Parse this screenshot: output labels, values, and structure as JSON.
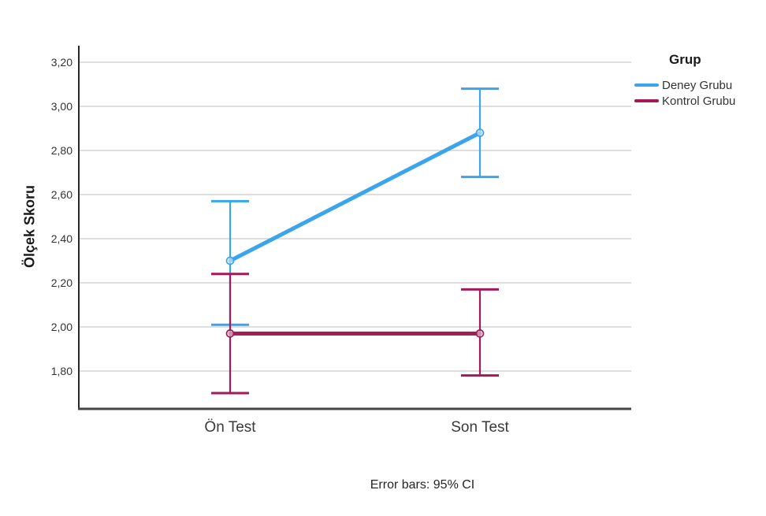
{
  "figure": {
    "caption": "Error bars: 95% CI"
  },
  "legend": {
    "title": "Grup",
    "position": "right",
    "items": [
      {
        "label": "Deney Grubu",
        "color": "#3AA5EC"
      },
      {
        "label": "Kontrol Grubu",
        "color": "#A21A58"
      }
    ]
  },
  "chart_data": {
    "type": "line",
    "title": "",
    "xlabel": "",
    "ylabel": "Ölçek Skoru",
    "categories": [
      "Ön Test",
      "Son Test"
    ],
    "yticks": [
      {
        "label": "3,20",
        "value": 3.2
      },
      {
        "label": "3,00",
        "value": 3.0
      },
      {
        "label": "2,80",
        "value": 2.8
      },
      {
        "label": "2,60",
        "value": 2.6
      },
      {
        "label": "2,40",
        "value": 2.4
      },
      {
        "label": "2,20",
        "value": 2.2
      },
      {
        "label": "2,00",
        "value": 2.0
      },
      {
        "label": "1,80",
        "value": 1.8
      }
    ],
    "ylim": [
      1.63,
      3.28
    ],
    "grid": true,
    "grid_color": "#C9C9C9",
    "axis_color": "#333333",
    "legend_position": "right",
    "error_bars": "95% CI",
    "series": [
      {
        "name": "Deney Grubu",
        "color": "#3AA5EC",
        "means": [
          2.3,
          2.88
        ],
        "ci_low": [
          2.01,
          2.68
        ],
        "ci_high": [
          2.57,
          3.08
        ]
      },
      {
        "name": "Kontrol Grubu",
        "color": "#A21A58",
        "means": [
          1.97,
          1.97
        ],
        "ci_low": [
          1.7,
          1.78
        ],
        "ci_high": [
          2.24,
          2.17
        ]
      }
    ]
  }
}
